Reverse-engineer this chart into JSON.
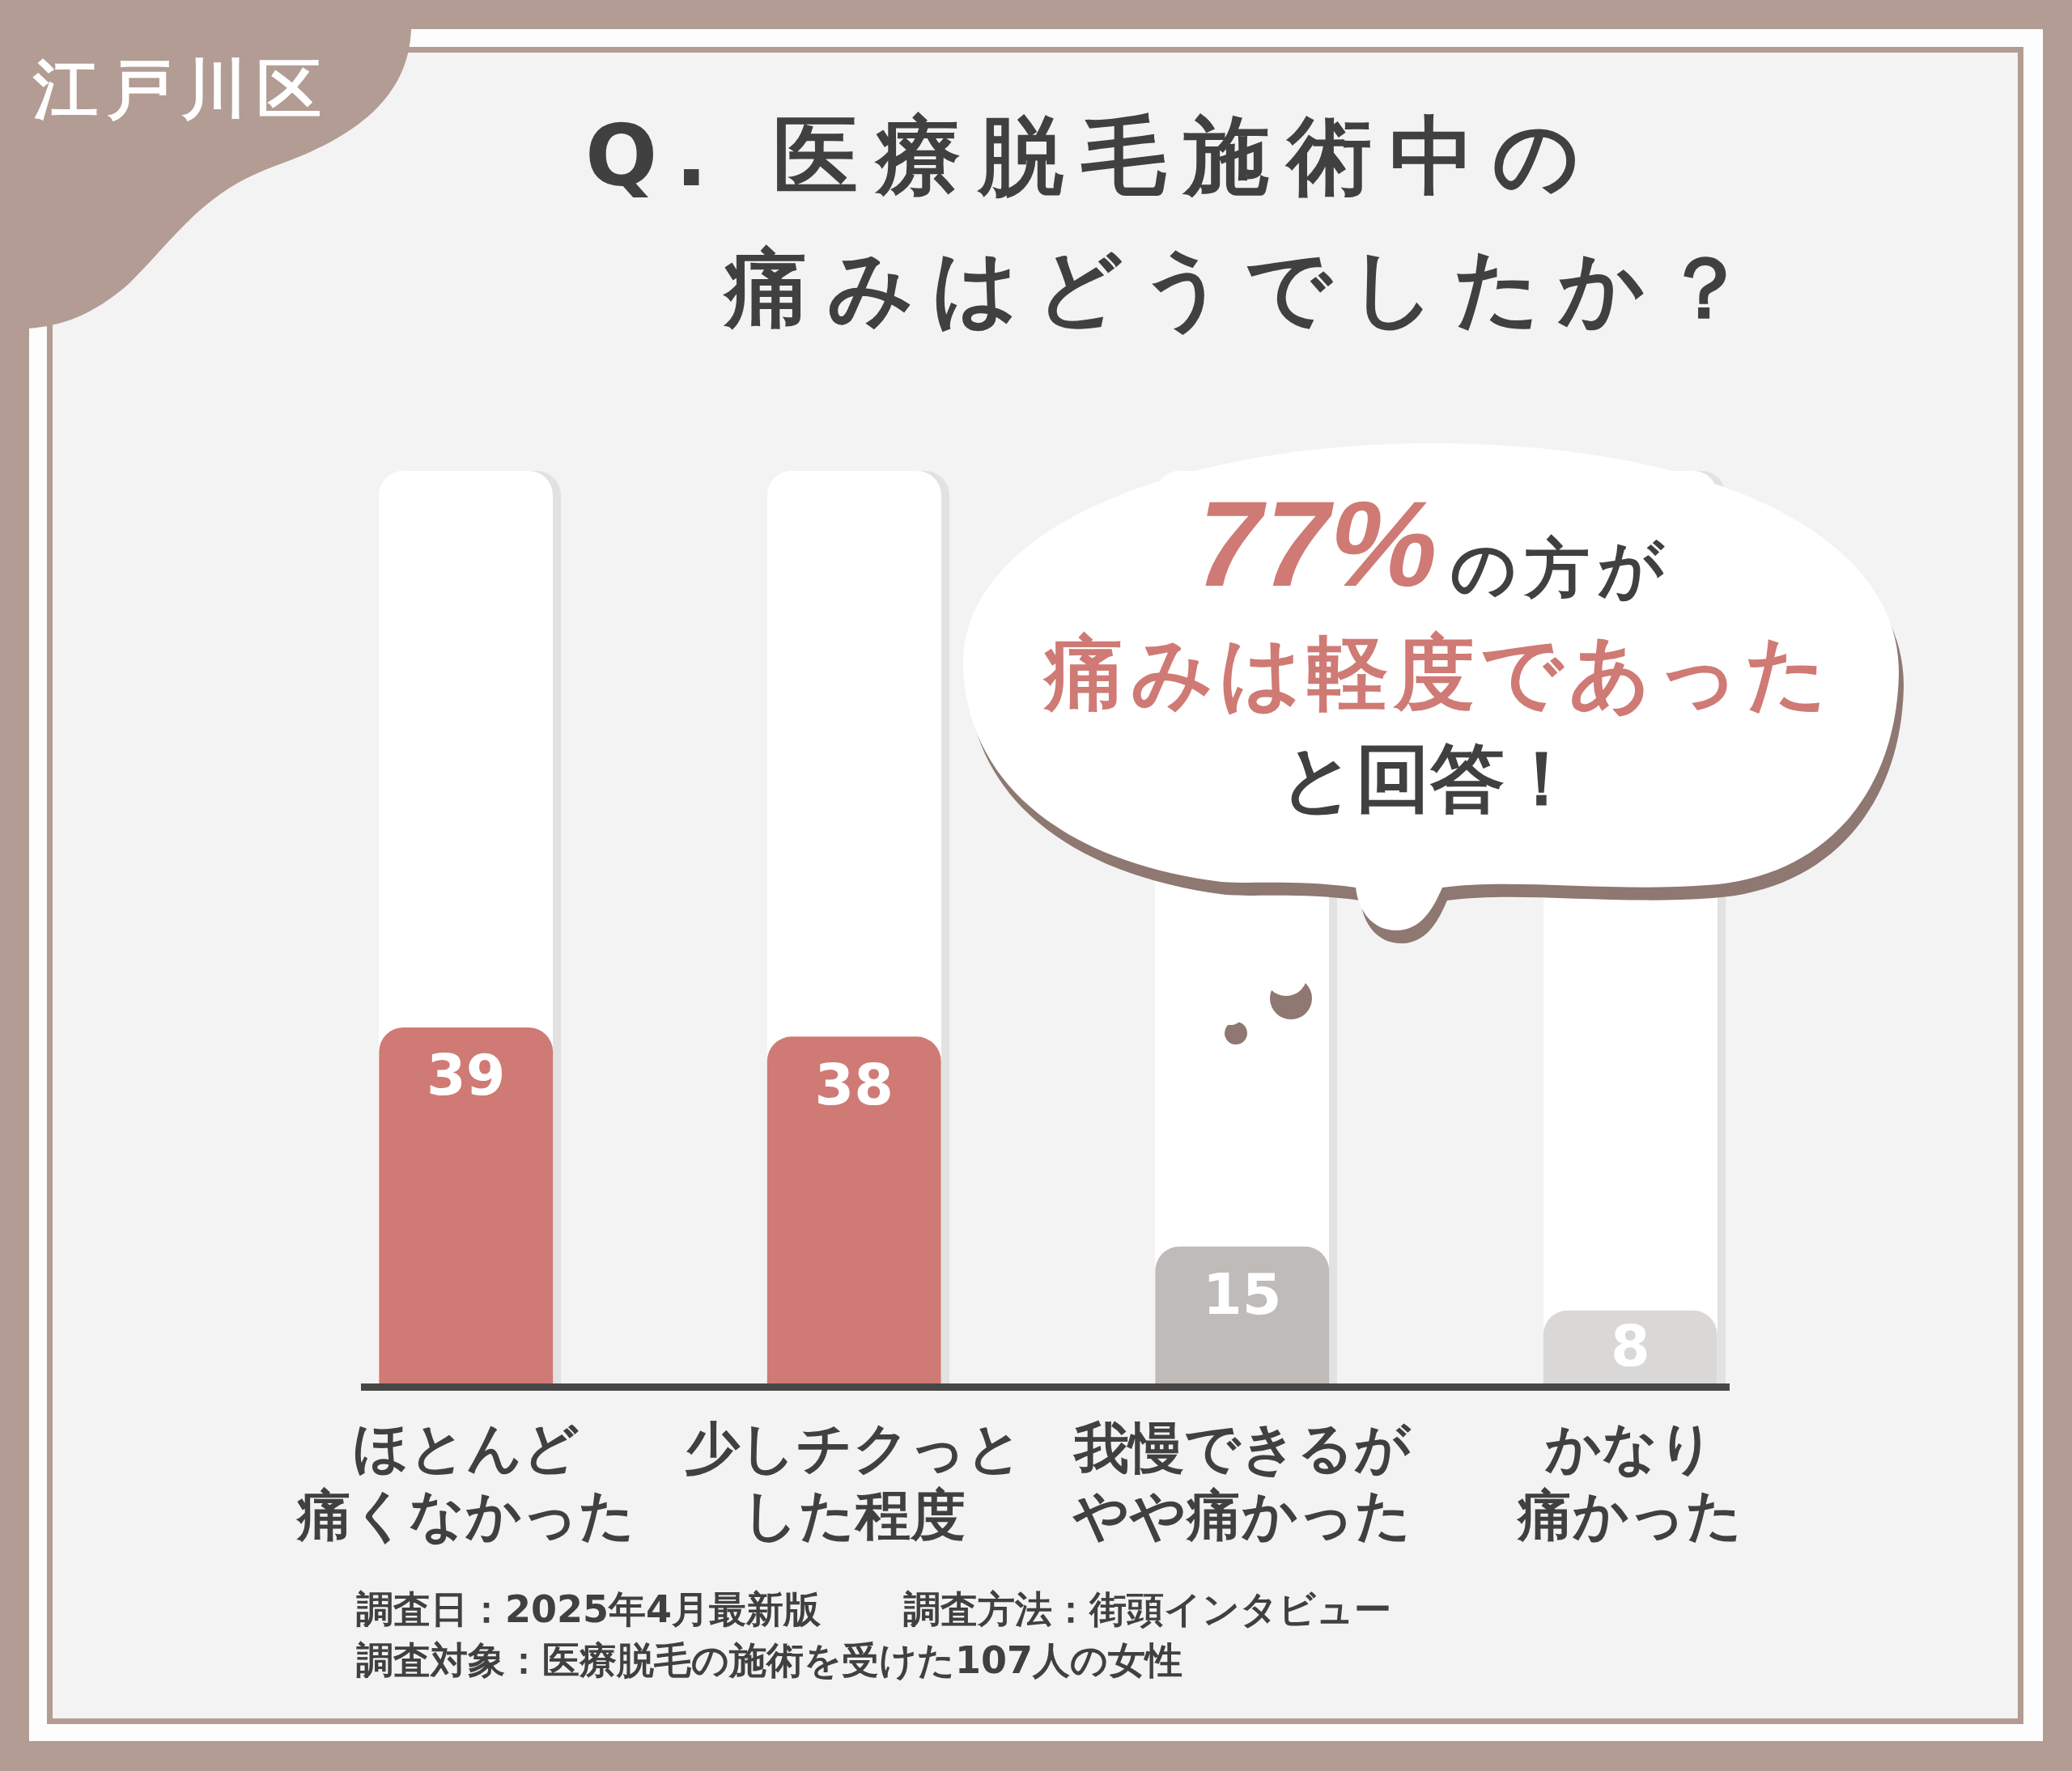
{
  "chart_data": {
    "type": "bar",
    "title": "Q. 医療脱毛施術中の痛みはどうでしたか？",
    "categories": [
      "ほとんど痛くなかった",
      "少しチクっとした程度",
      "我慢できるがやや痛かった",
      "かなり痛かった"
    ],
    "values": [
      39,
      38,
      15,
      8
    ],
    "colors": [
      "#cf7a74",
      "#cf7a74",
      "#bfbbb9",
      "#dad8d7"
    ],
    "ylim": [
      0,
      100
    ],
    "data_labels": true,
    "tick_labels": "x",
    "annotations": [
      "江戸川区",
      "77%",
      "の方が",
      "痛みは軽度であった",
      "と回答！",
      "調査日：2025年4月最新版",
      "調査方法：街頭インタビュー",
      "調査対象：医療脱毛の施術を受けた107人の女性"
    ]
  }
}
